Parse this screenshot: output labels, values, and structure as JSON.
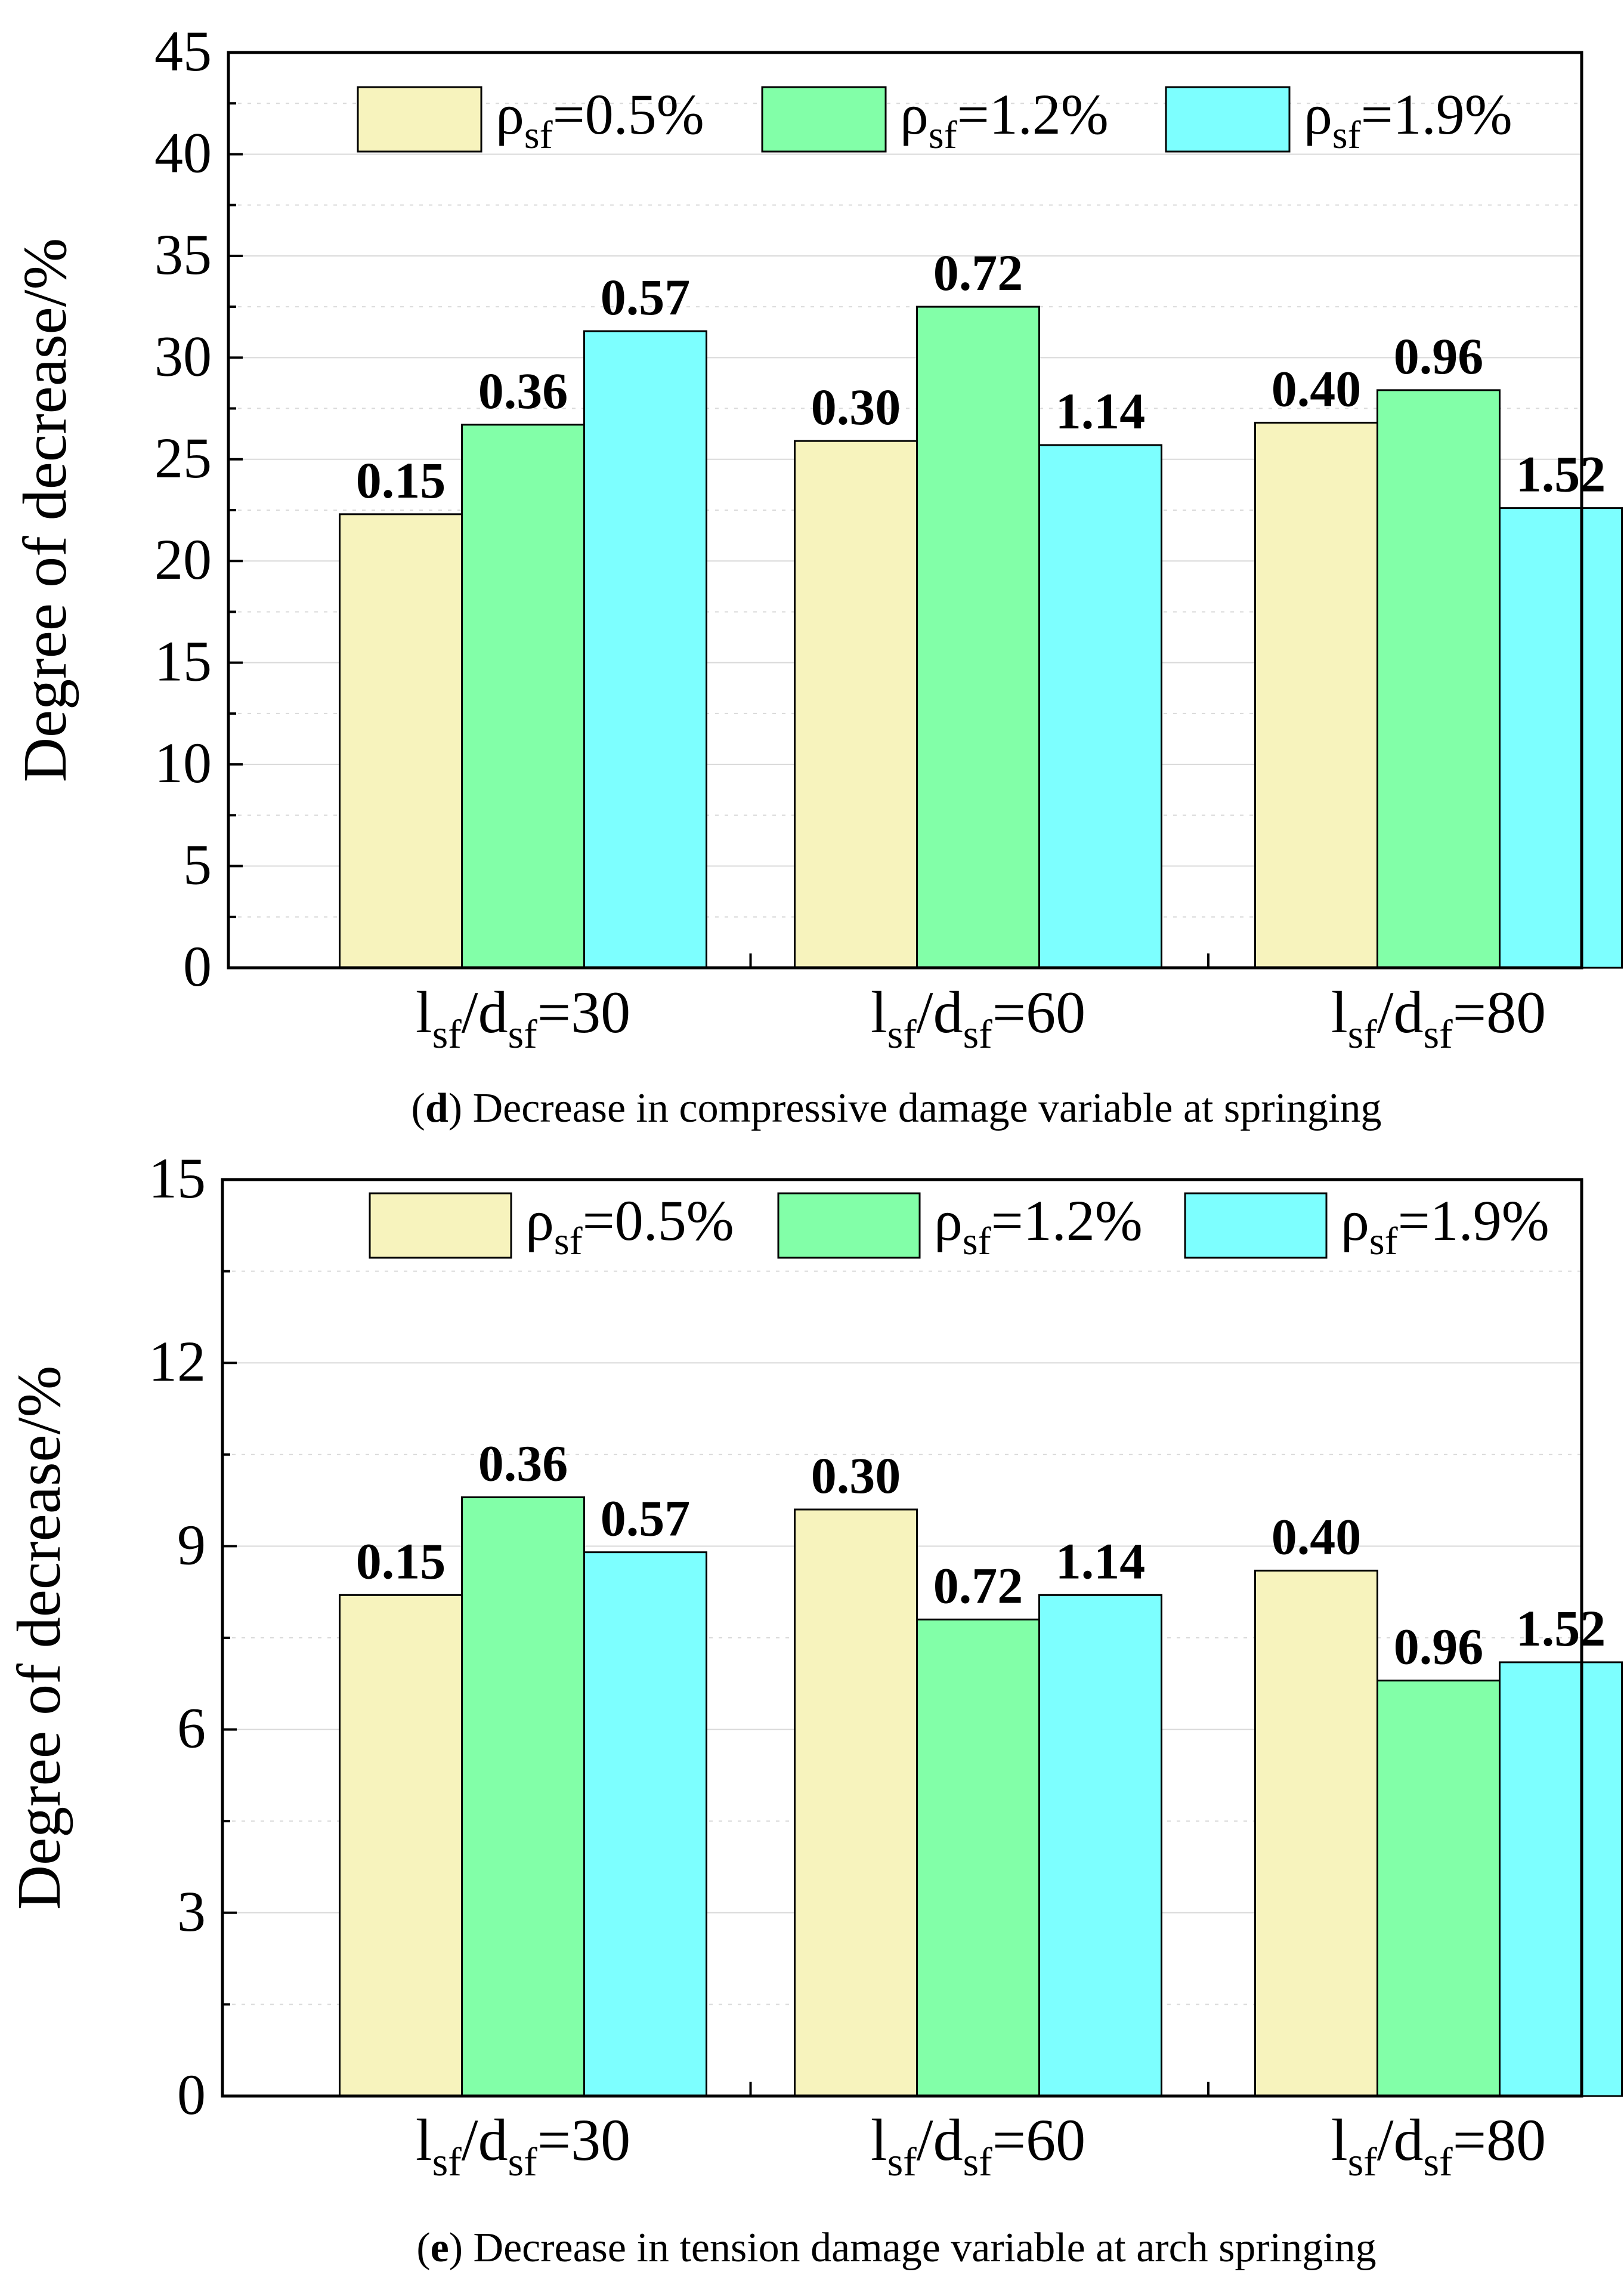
{
  "colors": {
    "series_1": "#f7f3bd",
    "series_2": "#82ffa8",
    "series_3": "#7dffff",
    "axis": "#000000",
    "grid": "#d9d9d9"
  },
  "chart_data": [
    {
      "type": "bar",
      "panel": "d",
      "caption": {
        "letter": "d",
        "open": "(",
        "text": ") Decrease in compressive damage variable at springing"
      },
      "ylabel": "Degree of decrease/%",
      "ylim": [
        0,
        45
      ],
      "yticks": [
        "0",
        "5",
        "10",
        "15",
        "20",
        "25",
        "30",
        "35",
        "40",
        "45"
      ],
      "grid": true,
      "legend_position": "top",
      "categories": [
        {
          "l": "l",
          "l_sub": "sf",
          "slash": "/d",
          "d_sub": "sf",
          "eq": "=30"
        },
        {
          "l": "l",
          "l_sub": "sf",
          "slash": "/d",
          "d_sub": "sf",
          "eq": "=60"
        },
        {
          "l": "l",
          "l_sub": "sf",
          "slash": "/d",
          "d_sub": "sf",
          "eq": "=80"
        }
      ],
      "series": [
        {
          "name": "ρsf=0.5%",
          "sym": "ρ",
          "sub": "sf",
          "rest": "=0.5%",
          "values": [
            22.3,
            25.9,
            26.8
          ],
          "labels": [
            "0.15",
            "0.30",
            "0.40"
          ]
        },
        {
          "name": "ρsf=1.2%",
          "sym": "ρ",
          "sub": "sf",
          "rest": "=1.2%",
          "values": [
            26.7,
            32.5,
            28.4
          ],
          "labels": [
            "0.36",
            "0.72",
            "0.96"
          ]
        },
        {
          "name": "ρsf=1.9%",
          "sym": "ρ",
          "sub": "sf",
          "rest": "=1.9%",
          "values": [
            31.3,
            25.7,
            22.6
          ],
          "labels": [
            "0.57",
            "1.14",
            "1.52"
          ]
        }
      ]
    },
    {
      "type": "bar",
      "panel": "e",
      "caption": {
        "letter": "e",
        "open": "(",
        "text": ") Decrease in tension damage variable at arch springing"
      },
      "ylabel": "Degree of decrease/%",
      "ylim": [
        0,
        15
      ],
      "yticks": [
        "0",
        "3",
        "6",
        "9",
        "12",
        "15"
      ],
      "grid": true,
      "legend_position": "top",
      "categories": [
        {
          "l": "l",
          "l_sub": "sf",
          "slash": "/d",
          "d_sub": "sf",
          "eq": "=30"
        },
        {
          "l": "l",
          "l_sub": "sf",
          "slash": "/d",
          "d_sub": "sf",
          "eq": "=60"
        },
        {
          "l": "l",
          "l_sub": "sf",
          "slash": "/d",
          "d_sub": "sf",
          "eq": "=80"
        }
      ],
      "series": [
        {
          "name": "ρsf=0.5%",
          "sym": "ρ",
          "sub": "sf",
          "rest": "=0.5%",
          "values": [
            8.2,
            9.6,
            8.6
          ],
          "labels": [
            "0.15",
            "0.30",
            "0.40"
          ]
        },
        {
          "name": "ρsf=1.2%",
          "sym": "ρ",
          "sub": "sf",
          "rest": "=1.2%",
          "values": [
            9.8,
            7.8,
            6.8
          ],
          "labels": [
            "0.36",
            "0.72",
            "0.96"
          ]
        },
        {
          "name": "ρsf=1.9%",
          "sym": "ρ",
          "sub": "sf",
          "rest": "=1.9%",
          "values": [
            8.9,
            8.2,
            7.1
          ],
          "labels": [
            "0.57",
            "1.14",
            "1.52"
          ]
        }
      ]
    }
  ]
}
